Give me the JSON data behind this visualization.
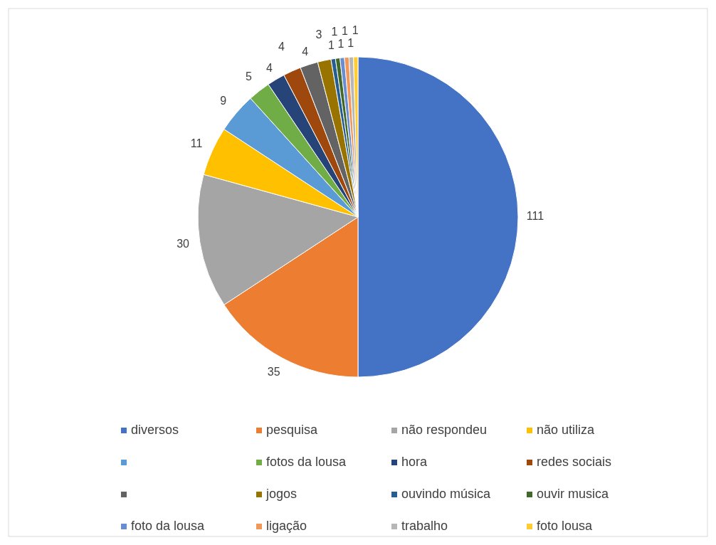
{
  "chart_data": {
    "type": "pie",
    "categories": [
      "diversos",
      "pesquisa",
      "não respondeu",
      "não utiliza",
      null,
      "fotos da lousa",
      "hora",
      "redes sociais",
      null,
      "jogos",
      "ouvindo música",
      "ouvir musica",
      "foto da lousa",
      "ligação",
      "trabalho",
      "foto lousa"
    ],
    "values": [
      111,
      35,
      30,
      11,
      9,
      5,
      4,
      4,
      4,
      3,
      1,
      1,
      1,
      1,
      1,
      1
    ],
    "colors": [
      "#4472c4",
      "#ed7d31",
      "#a5a5a5",
      "#ffc000",
      "#5b9bd5",
      "#70ad47",
      "#264478",
      "#9e480e",
      "#636363",
      "#997300",
      "#255e91",
      "#43682b",
      "#698ed0",
      "#f1975a",
      "#b7b7b7",
      "#ffcd33"
    ],
    "data_labels": true,
    "legend": "bottom"
  }
}
